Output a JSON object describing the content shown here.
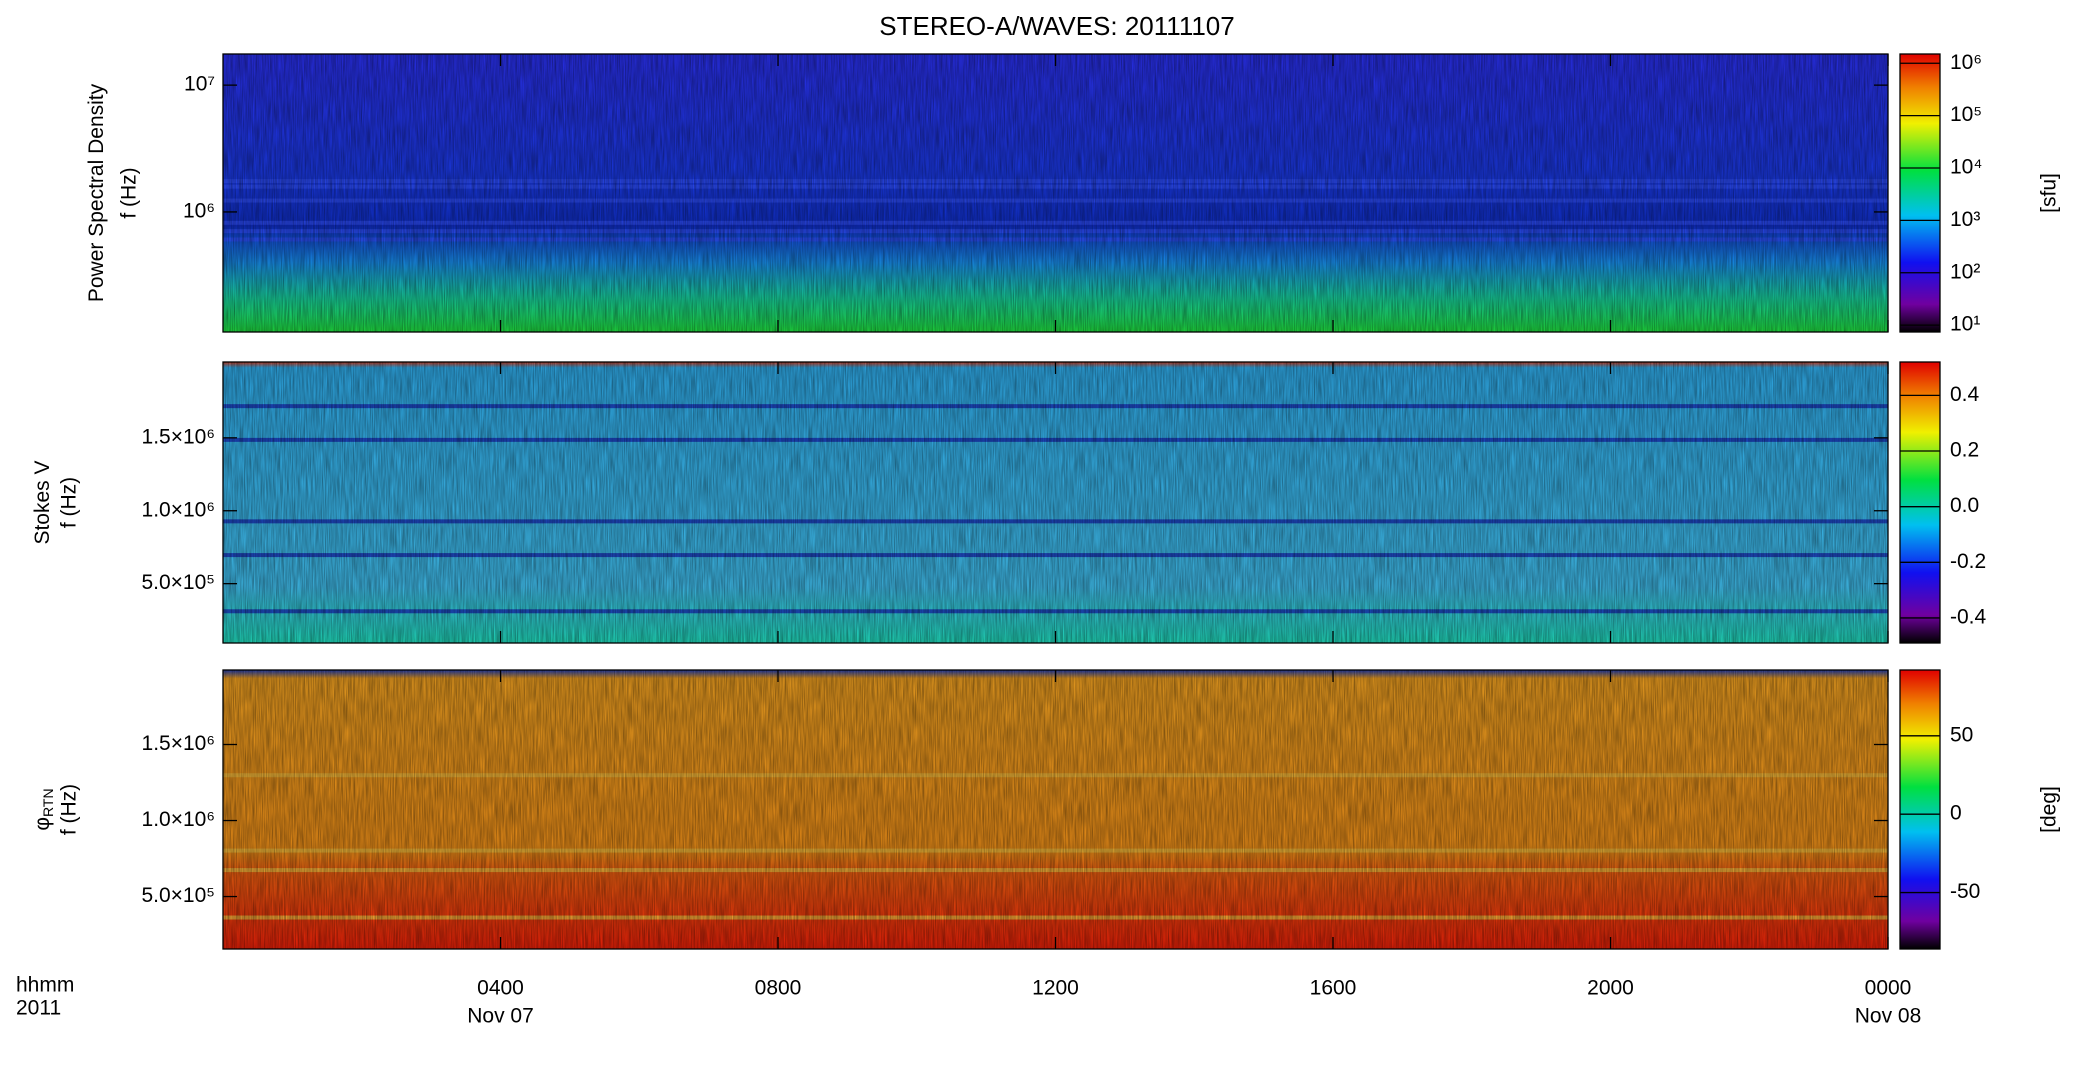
{
  "chart_data": [
    {
      "type": "heatmap",
      "title": "STEREO-A/WAVES: 20111107",
      "ylabel": "Power Spectral Density",
      "ylabel2": "f (Hz)",
      "log_y": true,
      "ylim": [
        113000,
        17600000
      ],
      "yticks": [
        {
          "value": 1000000,
          "label": "10⁶"
        },
        {
          "value": 10000000,
          "label": "10⁷"
        }
      ],
      "xlim": [
        0,
        24
      ],
      "xticks": [
        4,
        8,
        12,
        16,
        20,
        24
      ],
      "colorbar": {
        "label": "[sfu]",
        "log": true,
        "lim": [
          7.4,
          1500000
        ],
        "ticks": [
          {
            "value": 10,
            "label": "10¹"
          },
          {
            "value": 100,
            "label": "10²"
          },
          {
            "value": 1000,
            "label": "10³"
          },
          {
            "value": 10000,
            "label": "10⁴"
          },
          {
            "value": 100000,
            "label": "10⁵"
          },
          {
            "value": 1000000,
            "label": "10⁶"
          }
        ]
      }
    },
    {
      "type": "heatmap",
      "ylabel": "Stokes V",
      "ylabel2": "f (Hz)",
      "log_y": false,
      "ylim": [
        93000,
        2020000
      ],
      "yticks": [
        {
          "value": 500000,
          "label": "5.0×10⁵"
        },
        {
          "value": 1000000,
          "label": "1.0×10⁶"
        },
        {
          "value": 1500000,
          "label": "1.5×10⁶"
        }
      ],
      "xlim": [
        0,
        24
      ],
      "xticks": [
        4,
        8,
        12,
        16,
        20,
        24
      ],
      "colorbar": {
        "log": false,
        "lim": [
          -0.49,
          0.52
        ],
        "ticks": [
          -0.4,
          -0.2,
          {
            "value": 0,
            "label": "0.0"
          },
          0.2,
          0.4
        ]
      }
    },
    {
      "type": "heatmap",
      "ylabel": "φ",
      "ylabel_sub": "RTN",
      "ylabel2": "f (Hz)",
      "log_y": false,
      "ylim": [
        155000,
        1990000
      ],
      "yticks": [
        {
          "value": 500000,
          "label": "5.0×10⁵"
        },
        {
          "value": 1000000,
          "label": "1.0×10⁶"
        },
        {
          "value": 1500000,
          "label": "1.5×10⁶"
        }
      ],
      "xlim": [
        0,
        24
      ],
      "xticks": [
        {
          "value": 4,
          "label": "0400"
        },
        {
          "value": 8,
          "label": "0800"
        },
        {
          "value": 12,
          "label": "1200"
        },
        {
          "value": 16,
          "label": "1600"
        },
        {
          "value": 20,
          "label": "2000"
        },
        {
          "value": 24,
          "label": "0000"
        }
      ],
      "x_date_labels": [
        {
          "value": 4,
          "label": "Nov 07"
        },
        {
          "value": 24,
          "label": "Nov 08"
        }
      ],
      "x_units": "hhmm",
      "x_year": "2011",
      "colorbar": {
        "label": "[deg]",
        "log": false,
        "lim": [
          -86,
          92
        ],
        "ticks": [
          -50,
          0,
          50
        ]
      }
    }
  ]
}
